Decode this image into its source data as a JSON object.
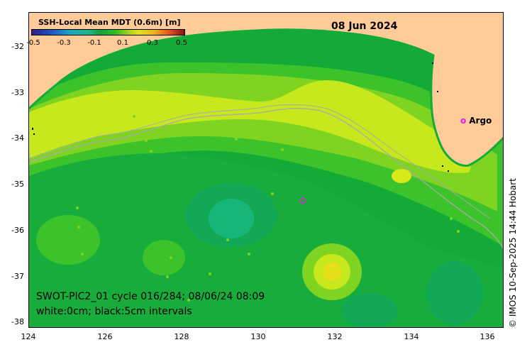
{
  "colorbar": {
    "title": "SSH-Local Mean MDT (0.6m) [m]",
    "ticks": [
      "-0.5",
      "-0.3",
      "-0.1",
      "0.1",
      "0.3",
      "0.5"
    ]
  },
  "date": "08 Jun 2024",
  "legend": {
    "marker": "o",
    "label": "Argo",
    "color": "#e020e0"
  },
  "info": {
    "line1": "SWOT-PIC2_01 cycle 016/284; 08/06/24 08:09",
    "line2": "white:0cm; black:5cm intervals"
  },
  "credit": "© IMOS 10-Sep-2025 14:44 Hobart",
  "axes": {
    "y_labels": [
      "-32",
      "-33",
      "-34",
      "-35",
      "-36",
      "-37",
      "-38"
    ],
    "x_labels": [
      "124",
      "126",
      "128",
      "130",
      "132",
      "134",
      "136"
    ]
  },
  "colors": {
    "land": "#ffcc99",
    "field_green": "#19b23c",
    "field_mid": "#66cc22",
    "field_yellowgreen": "#c8e81a",
    "field_teal": "#12b47a",
    "contour": "#aaaaaa"
  }
}
